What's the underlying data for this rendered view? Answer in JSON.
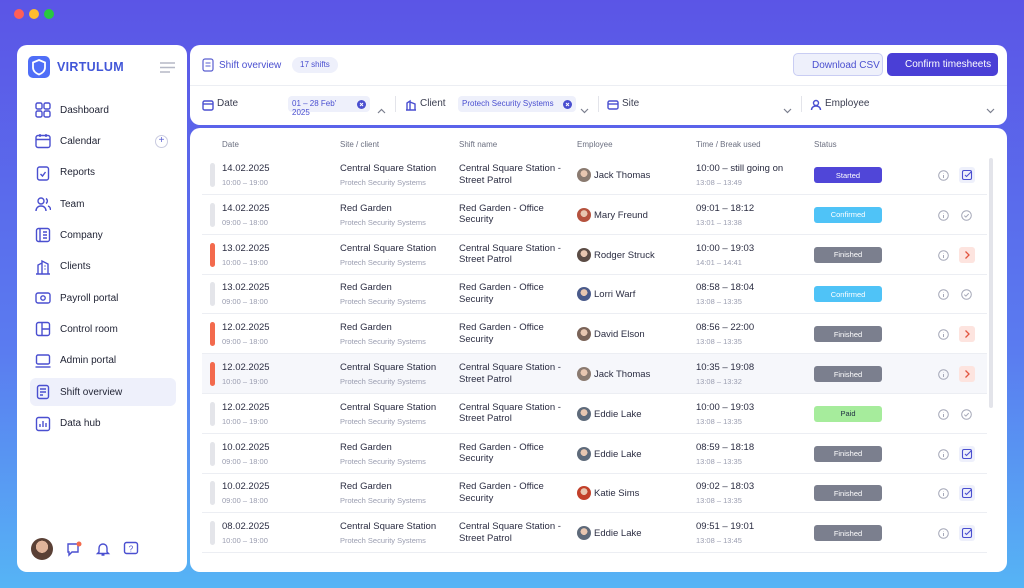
{
  "app": {
    "brand": "VIRTULUM"
  },
  "nav": [
    "Dashboard",
    "Calendar",
    "Reports",
    "Team",
    "Company",
    "Clients",
    "Payroll portal",
    "Control room",
    "Admin portal",
    "Shift overview",
    "Data hub"
  ],
  "header": {
    "title": "Shift overview",
    "badge": "17 shifts",
    "buttons": [
      "Download CSV",
      "Confirm timesheets"
    ]
  },
  "filters": [
    {
      "label": "Date",
      "value": "01 – 28 Feb' 2025"
    },
    {
      "label": "Client",
      "value": "Protech Security Systems"
    },
    {
      "label": "Site"
    },
    {
      "label": "Employee"
    }
  ],
  "table": {
    "columns": [
      "Date",
      "Site / client",
      "Shift name",
      "Employee",
      "Time / Break used",
      "Status"
    ],
    "rows": [
      {
        "date": "14.02.2025",
        "hours": "10:00 – 19:00",
        "site": "Central Square Station",
        "client": "Protech Security Systems",
        "shift": "Central Square Station - Street Patrol",
        "employee": "Jack Thomas",
        "time": "10:00 – still going on",
        "break": "13:08 – 13:49",
        "status": "Started"
      },
      {
        "date": "14.02.2025",
        "hours": "09:00 – 18:00",
        "site": "Red Garden",
        "client": "Protech Security Systems",
        "shift": "Red Garden - Office Security",
        "employee": "Mary Freund",
        "time": "09:01 – 18:12",
        "break": "13:01 – 13:38",
        "status": "Confirmed"
      },
      {
        "date": "13.02.2025",
        "hours": "10:00 – 19:00",
        "site": "Central Square Station",
        "client": "Protech Security Systems",
        "shift": "Central Square Station - Street Patrol",
        "employee": "Rodger Struck",
        "time": "10:00 – 19:03",
        "break": "14:01 – 14:41",
        "status": "Finished"
      },
      {
        "date": "13.02.2025",
        "hours": "09:00 – 18:00",
        "site": "Red Garden",
        "client": "Protech Security Systems",
        "shift": "Red Garden - Office Security",
        "employee": "Lorri Warf",
        "time": "08:58 – 18:04",
        "break": "13:08 – 13:35",
        "status": "Confirmed"
      },
      {
        "date": "12.02.2025",
        "hours": "09:00 – 18:00",
        "site": "Red Garden",
        "client": "Protech Security Systems",
        "shift": "Red Garden - Office Security",
        "employee": "David Elson",
        "time": "08:56 – 22:00",
        "break": "13:08 – 13:35",
        "status": "Finished"
      },
      {
        "date": "12.02.2025",
        "hours": "10:00 – 19:00",
        "site": "Central Square Station",
        "client": "Protech Security Systems",
        "shift": "Central Square Station - Street Patrol",
        "employee": "Jack Thomas",
        "time": "10:35 – 19:08",
        "break": "13:08 – 13:32",
        "status": "Finished"
      },
      {
        "date": "12.02.2025",
        "hours": "10:00 – 19:00",
        "site": "Central Square Station",
        "client": "Protech Security Systems",
        "shift": "Central Square Station - Street Patrol",
        "employee": "Eddie Lake",
        "time": "10:00 – 19:03",
        "break": "13:08 – 13:35",
        "status": "Paid"
      },
      {
        "date": "10.02.2025",
        "hours": "09:00 – 18:00",
        "site": "Red Garden",
        "client": "Protech Security Systems",
        "shift": "Red Garden - Office Security",
        "employee": "Eddie Lake",
        "time": "08:59 – 18:18",
        "break": "13:08 – 13:35",
        "status": "Finished"
      },
      {
        "date": "10.02.2025",
        "hours": "09:00 – 18:00",
        "site": "Red Garden",
        "client": "Protech Security Systems",
        "shift": "Red Garden - Office Security",
        "employee": "Katie Sims",
        "time": "09:02 – 18:03",
        "break": "13:08 – 13:35",
        "status": "Finished"
      },
      {
        "date": "08.02.2025",
        "hours": "10:00 – 19:00",
        "site": "Central Square Station",
        "client": "Protech Security Systems",
        "shift": "Central Square Station - Street Patrol",
        "employee": "Eddie Lake",
        "time": "09:51 – 19:01",
        "break": "13:08 – 13:45",
        "status": "Finished"
      }
    ]
  }
}
